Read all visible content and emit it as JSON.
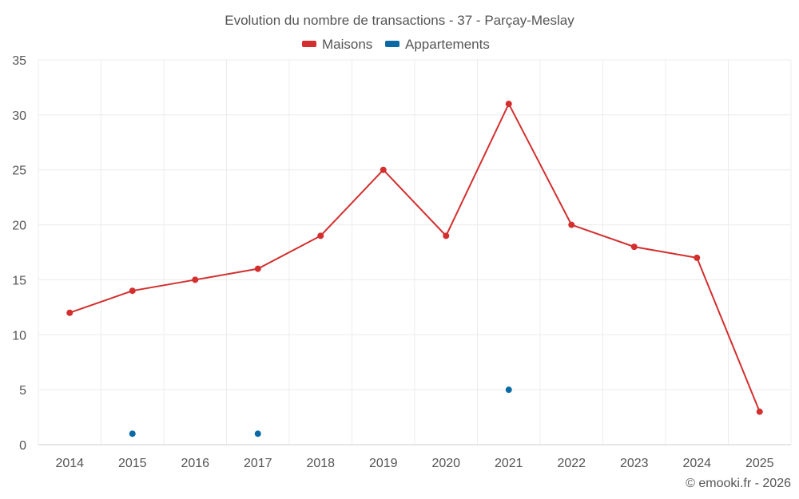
{
  "chart_data": {
    "type": "line",
    "title": "Evolution du nombre de transactions - 37 - Parçay-Meslay",
    "categories": [
      "2014",
      "2015",
      "2016",
      "2017",
      "2018",
      "2019",
      "2020",
      "2021",
      "2022",
      "2023",
      "2024",
      "2025"
    ],
    "ylim": [
      0,
      35
    ],
    "yticks": [
      0,
      5,
      10,
      15,
      20,
      25,
      30,
      35
    ],
    "series": [
      {
        "name": "Maisons",
        "color": "#d32f2f",
        "values": [
          12,
          14,
          15,
          16,
          19,
          25,
          19,
          31,
          20,
          18,
          17,
          3
        ]
      },
      {
        "name": "Appartements",
        "color": "#0b6aa6",
        "values": [
          null,
          1,
          null,
          1,
          null,
          null,
          null,
          5,
          null,
          null,
          null,
          null
        ]
      }
    ],
    "grid": true,
    "legend": "top-center"
  },
  "credit": "© emooki.fr - 2026"
}
